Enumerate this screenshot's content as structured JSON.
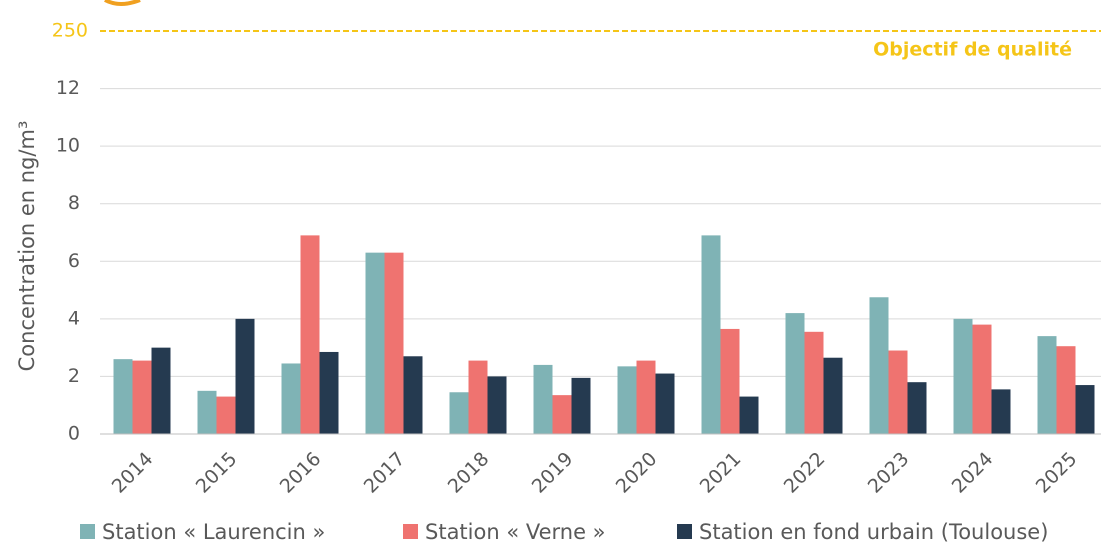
{
  "chart_data": {
    "type": "bar",
    "y_label": "Concentration en ng/m³",
    "categories": [
      "2014",
      "2015",
      "2016",
      "2017",
      "2018",
      "2019",
      "2020",
      "2021",
      "2022",
      "2023",
      "2024",
      "2025"
    ],
    "series": [
      {
        "name": "Station « Laurencin »",
        "color": "#7fb3b5",
        "values": [
          2.6,
          1.5,
          2.45,
          6.3,
          1.45,
          2.4,
          2.35,
          6.9,
          4.2,
          4.75,
          4.0,
          3.4
        ]
      },
      {
        "name": "Station « Verne »",
        "color": "#ef7370",
        "values": [
          2.55,
          1.3,
          6.9,
          6.3,
          2.55,
          1.35,
          2.55,
          3.65,
          3.55,
          2.9,
          3.8,
          3.05
        ]
      },
      {
        "name": "Station en fond urbain (Toulouse)",
        "color": "#253a50",
        "values": [
          3.0,
          4.0,
          2.85,
          2.7,
          2.0,
          1.95,
          2.1,
          1.3,
          2.65,
          1.8,
          1.55,
          1.7
        ]
      }
    ],
    "ylim": [
      0,
      14
    ],
    "yticks": [
      0,
      2,
      4,
      6,
      8,
      10,
      12
    ],
    "grid": true,
    "reference_line": {
      "value": 250,
      "label": "Objectif de qualité",
      "color": "#f5c518"
    }
  }
}
